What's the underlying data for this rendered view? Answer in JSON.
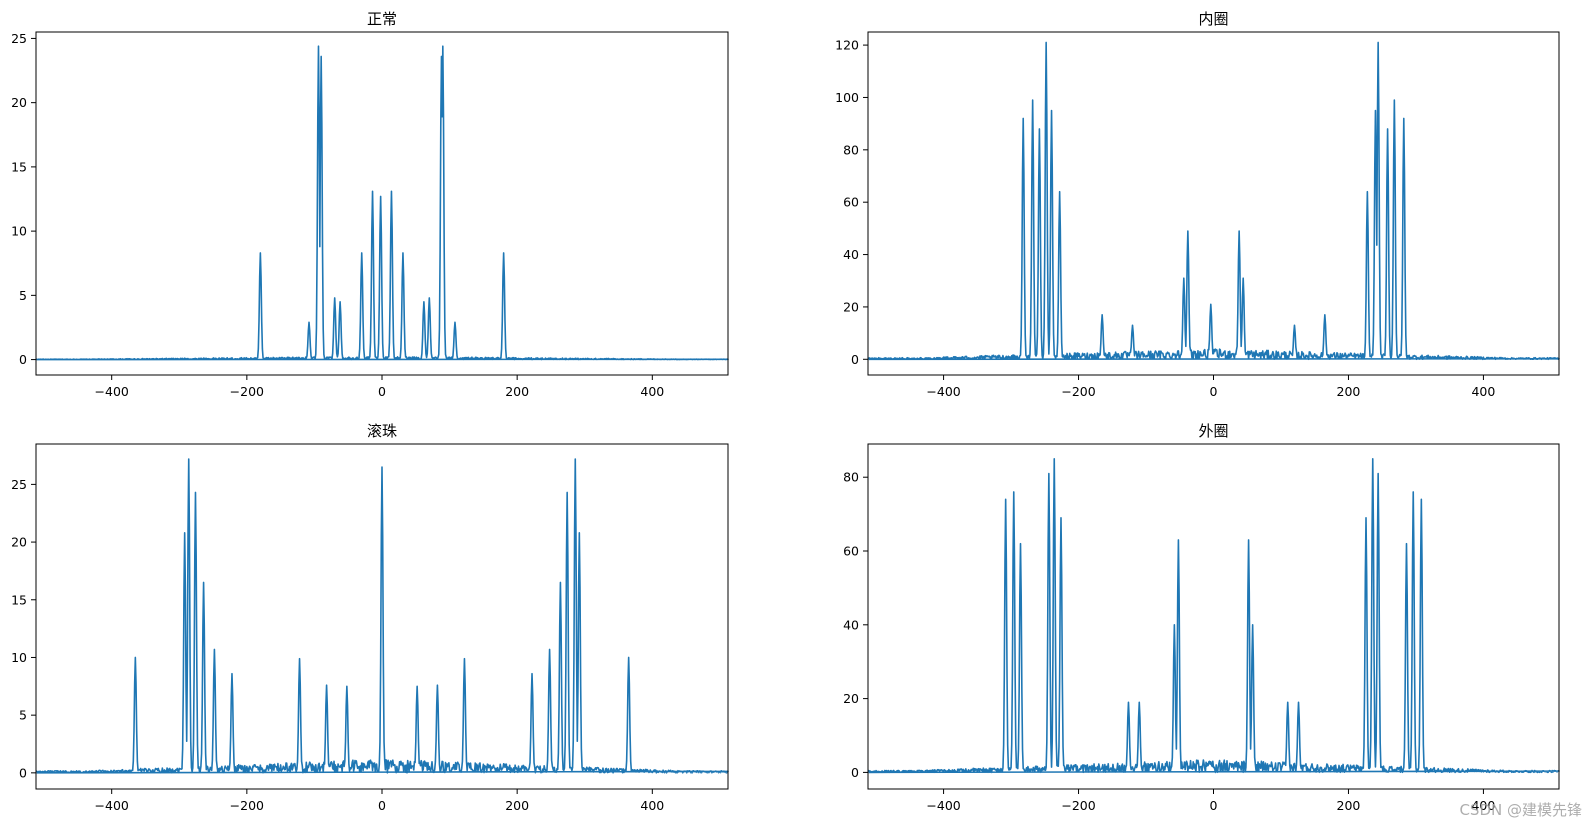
{
  "chart_data": [
    {
      "type": "line",
      "title": "正常",
      "xlim": [
        -512,
        512
      ],
      "ylim": [
        -1.2,
        25.5
      ],
      "xticks": [
        -400,
        -200,
        0,
        200,
        400
      ],
      "yticks": [
        0,
        5,
        10,
        15,
        20,
        25
      ],
      "series_color": "#1f77b4",
      "baseline": 0,
      "noise": 0.25,
      "peaks": [
        [
          -180,
          8.3
        ],
        [
          -94,
          24.4
        ],
        [
          -90,
          23.6
        ],
        [
          -70,
          4.8
        ],
        [
          -62,
          4.5
        ],
        [
          -30,
          8.3
        ],
        [
          -14,
          13.1
        ],
        [
          -2,
          12.7
        ],
        [
          14,
          13.1
        ],
        [
          31,
          8.3
        ],
        [
          62,
          4.5
        ],
        [
          70,
          4.8
        ],
        [
          88,
          23.6
        ],
        [
          90,
          24.4
        ],
        [
          180,
          8.3
        ],
        [
          108,
          2.9
        ],
        [
          -108,
          2.9
        ]
      ]
    },
    {
      "type": "line",
      "title": "内圈",
      "xlim": [
        -512,
        512
      ],
      "ylim": [
        -6,
        125
      ],
      "xticks": [
        -400,
        -200,
        0,
        200,
        400
      ],
      "yticks": [
        0,
        20,
        40,
        60,
        80,
        100,
        120
      ],
      "series_color": "#1f77b4",
      "baseline": 0,
      "noise": 4,
      "peaks": [
        [
          -282,
          92
        ],
        [
          -268,
          99
        ],
        [
          -258,
          88
        ],
        [
          -248,
          121
        ],
        [
          -240,
          95
        ],
        [
          -228,
          64
        ],
        [
          -44,
          31
        ],
        [
          -38,
          49
        ],
        [
          -165,
          17
        ],
        [
          -120,
          13
        ],
        [
          -4,
          21
        ],
        [
          38,
          49
        ],
        [
          44,
          31
        ],
        [
          120,
          13
        ],
        [
          165,
          17
        ],
        [
          228,
          64
        ],
        [
          240,
          95
        ],
        [
          244,
          121
        ],
        [
          258,
          88
        ],
        [
          268,
          99
        ],
        [
          282,
          92
        ]
      ]
    },
    {
      "type": "line",
      "title": "滚珠",
      "xlim": [
        -512,
        512
      ],
      "ylim": [
        -1.4,
        28.5
      ],
      "xticks": [
        -400,
        -200,
        0,
        200,
        400
      ],
      "yticks": [
        0,
        5,
        10,
        15,
        20,
        25
      ],
      "series_color": "#1f77b4",
      "baseline": 0,
      "noise": 1.2,
      "peaks": [
        [
          -365,
          10
        ],
        [
          -292,
          20.8
        ],
        [
          -286,
          27.2
        ],
        [
          -276,
          24.3
        ],
        [
          -264,
          16.5
        ],
        [
          -248,
          10.7
        ],
        [
          -222,
          8.6
        ],
        [
          -122,
          9.9
        ],
        [
          -82,
          7.6
        ],
        [
          -52,
          7.5
        ],
        [
          0,
          26.5
        ],
        [
          52,
          7.5
        ],
        [
          82,
          7.6
        ],
        [
          122,
          9.9
        ],
        [
          222,
          8.6
        ],
        [
          248,
          10.7
        ],
        [
          264,
          16.5
        ],
        [
          274,
          24.3
        ],
        [
          286,
          27.2
        ],
        [
          292,
          20.8
        ],
        [
          365,
          10
        ]
      ]
    },
    {
      "type": "line",
      "title": "外圈",
      "xlim": [
        -512,
        512
      ],
      "ylim": [
        -4.5,
        89
      ],
      "xticks": [
        -400,
        -200,
        0,
        200,
        400
      ],
      "yticks": [
        0,
        20,
        40,
        60,
        80
      ],
      "series_color": "#1f77b4",
      "baseline": 0,
      "noise": 3.5,
      "peaks": [
        [
          -308,
          74
        ],
        [
          -296,
          76
        ],
        [
          -286,
          62
        ],
        [
          -244,
          81
        ],
        [
          -236,
          85
        ],
        [
          -226,
          69
        ],
        [
          -52,
          63
        ],
        [
          -58,
          40
        ],
        [
          -126,
          19
        ],
        [
          -110,
          19
        ],
        [
          52,
          63
        ],
        [
          58,
          40
        ],
        [
          110,
          19
        ],
        [
          126,
          19
        ],
        [
          226,
          69
        ],
        [
          236,
          85
        ],
        [
          244,
          81
        ],
        [
          286,
          62
        ],
        [
          296,
          76
        ],
        [
          308,
          74
        ]
      ]
    }
  ],
  "watermark": "CSDN @建模先锋"
}
